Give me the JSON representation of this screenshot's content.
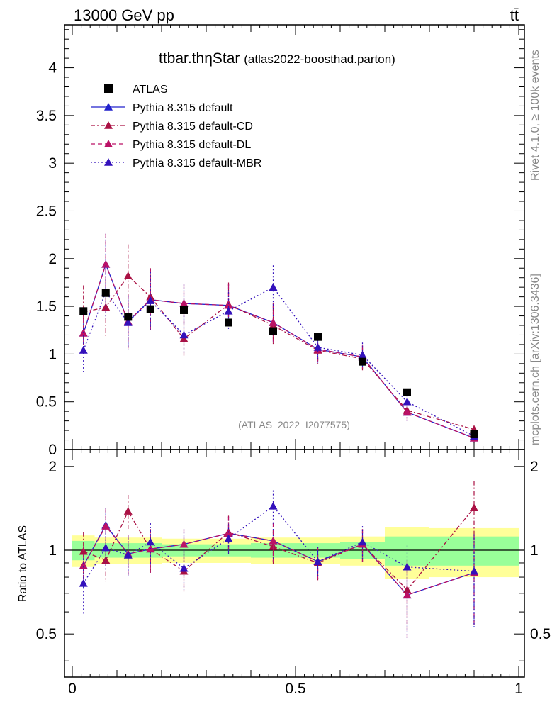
{
  "header": {
    "energy_label": "13000 GeV pp",
    "process_label": "tt̄",
    "title_main": "ttbar.thηStar",
    "title_sub": "(atlas2022-boosthad.parton)",
    "side_rivet": "Rivet 4.1.0, ≥ 100k events",
    "side_mcplots": "mcplots.cern.ch [arXiv:1306.3436]",
    "watermark": "(ATLAS_2022_I2077575)",
    "ratio_ylabel": "Ratio to ATLAS"
  },
  "colors": {
    "data": "#000000",
    "default": "#2222cc",
    "cd": "#aa1144",
    "dl": "#bb1166",
    "mbr": "#3311bb",
    "band_inner": "#99ff99",
    "band_outer": "#ffff99"
  },
  "chart_data": {
    "type": "scatter",
    "xlim": [
      0,
      1
    ],
    "ylim": [
      0,
      4.45
    ],
    "ratio_ylim": [
      0.35,
      2.3
    ],
    "x_ticks": [
      "0",
      "0.5",
      "1"
    ],
    "y_ticks": [
      "0",
      "0.5",
      "1",
      "1.5",
      "2",
      "2.5",
      "3",
      "3.5",
      "4"
    ],
    "ratio_ticks": [
      "0.5",
      "1",
      "2"
    ],
    "bin_edges": [
      0,
      0.05,
      0.1,
      0.15,
      0.2,
      0.3,
      0.4,
      0.5,
      0.6,
      0.7,
      0.8,
      1.0
    ],
    "x": [
      0.025,
      0.075,
      0.125,
      0.175,
      0.25,
      0.35,
      0.45,
      0.55,
      0.65,
      0.75,
      0.9
    ],
    "data": {
      "name": "ATLAS",
      "values": [
        1.45,
        1.64,
        1.39,
        1.47,
        1.46,
        1.33,
        1.24,
        1.18,
        0.92,
        0.6,
        0.16
      ],
      "band_inner": [
        0.08,
        0.06,
        0.06,
        0.06,
        0.05,
        0.05,
        0.06,
        0.06,
        0.07,
        0.12,
        0.12
      ],
      "band_outer": [
        0.13,
        0.11,
        0.11,
        0.11,
        0.1,
        0.1,
        0.11,
        0.11,
        0.12,
        0.21,
        0.2
      ]
    },
    "series": [
      {
        "name": "Pythia 8.315 default",
        "key": "default",
        "line": "solid",
        "values": [
          1.22,
          1.94,
          1.34,
          1.57,
          1.53,
          1.51,
          1.33,
          1.05,
          0.97,
          0.39,
          0.12
        ],
        "errors": [
          0.22,
          0.32,
          0.28,
          0.32,
          0.2,
          0.22,
          0.2,
          0.14,
          0.12,
          0.1,
          0.05
        ],
        "ratio": [
          0.88,
          1.23,
          0.97,
          1.01,
          1.05,
          1.15,
          1.08,
          0.91,
          1.05,
          0.69,
          0.83
        ],
        "ratio_errors": [
          0.15,
          0.19,
          0.16,
          0.18,
          0.14,
          0.17,
          0.17,
          0.12,
          0.14,
          0.21,
          0.3
        ]
      },
      {
        "name": "Pythia 8.315 default-CD",
        "key": "cd",
        "line": "dashdot",
        "values": [
          1.44,
          1.49,
          1.82,
          1.6,
          1.16,
          1.52,
          1.3,
          1.04,
          0.95,
          0.41,
          0.21
        ],
        "errors": [
          0.28,
          0.3,
          0.33,
          0.3,
          0.18,
          0.23,
          0.2,
          0.14,
          0.12,
          0.1,
          0.05
        ],
        "ratio": [
          0.99,
          0.92,
          1.38,
          1.01,
          0.84,
          1.16,
          1.03,
          0.9,
          1.05,
          0.72,
          1.42
        ],
        "ratio_errors": [
          0.17,
          0.15,
          0.2,
          0.18,
          0.13,
          0.17,
          0.15,
          0.12,
          0.14,
          0.2,
          0.35
        ]
      },
      {
        "name": "Pythia 8.315 default-DL",
        "key": "dl",
        "line": "dashed",
        "values": [
          1.22,
          1.94,
          1.34,
          1.57,
          1.53,
          1.51,
          1.33,
          1.05,
          0.97,
          0.39,
          0.12
        ],
        "errors": [
          0.22,
          0.32,
          0.28,
          0.32,
          0.2,
          0.22,
          0.2,
          0.14,
          0.12,
          0.1,
          0.05
        ],
        "ratio": [
          0.88,
          1.22,
          0.97,
          1.01,
          1.05,
          1.15,
          1.08,
          0.91,
          1.05,
          0.69,
          0.83
        ],
        "ratio_errors": [
          0.15,
          0.19,
          0.16,
          0.18,
          0.14,
          0.17,
          0.17,
          0.12,
          0.14,
          0.21,
          0.3
        ]
      },
      {
        "name": "Pythia 8.315 default-MBR",
        "key": "mbr",
        "line": "dotted",
        "values": [
          1.04,
          1.65,
          1.33,
          1.56,
          1.2,
          1.45,
          1.7,
          1.07,
          0.99,
          0.5,
          0.14
        ],
        "errors": [
          0.23,
          0.28,
          0.28,
          0.3,
          0.2,
          0.2,
          0.23,
          0.15,
          0.13,
          0.1,
          0.05
        ],
        "ratio": [
          0.76,
          1.02,
          0.96,
          1.07,
          0.86,
          1.1,
          1.44,
          0.91,
          1.07,
          0.87,
          0.84
        ],
        "ratio_errors": [
          0.17,
          0.17,
          0.15,
          0.18,
          0.14,
          0.14,
          0.2,
          0.12,
          0.15,
          0.17,
          0.3
        ]
      }
    ]
  }
}
